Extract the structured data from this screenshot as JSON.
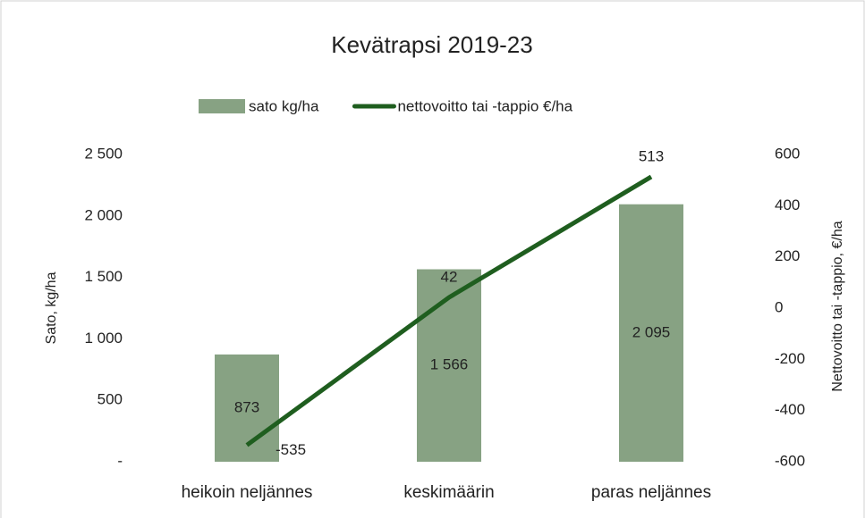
{
  "chart_data": {
    "type": "combo",
    "title": "Kevätrapsi 2019-23",
    "categories": [
      "heikoin neljännes",
      "keskimäärin",
      "paras neljännes"
    ],
    "series": [
      {
        "name": "sato kg/ha",
        "type": "bar",
        "color": "#87a283",
        "values": [
          873,
          1566,
          2095
        ],
        "value_labels": [
          "873",
          "1 566",
          "2 095"
        ]
      },
      {
        "name": "nettovoitto tai -tappio €/ha",
        "type": "line",
        "axis": "y2",
        "color": "#1f5e1f",
        "values": [
          -535,
          42,
          513
        ]
      }
    ],
    "ylabel": "Sato, kg/ha",
    "y2label": "Nettovoitto tai -tappio, €/ha",
    "ylim": [
      0,
      2500
    ],
    "yticks": [
      {
        "value": 0,
        "label": "-"
      },
      500,
      {
        "value": 1000,
        "label": "1 000"
      },
      {
        "value": 1500,
        "label": "1 500"
      },
      {
        "value": 2000,
        "label": "2 000"
      },
      {
        "value": 2500,
        "label": "2 500"
      }
    ],
    "y2lim": [
      -600,
      600
    ],
    "y2ticks": [
      -600,
      -400,
      -200,
      0,
      200,
      400,
      600
    ],
    "legend": "top",
    "grid": false
  }
}
